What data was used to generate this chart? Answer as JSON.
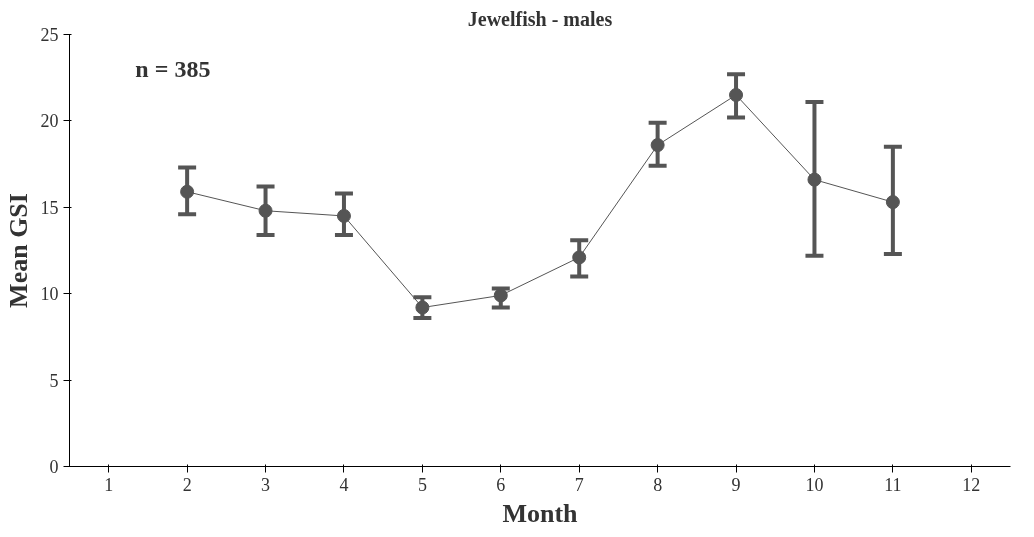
{
  "chart_data": {
    "type": "line",
    "title": "Jewelfish - males",
    "xlabel": "Month",
    "ylabel": "Mean GSI",
    "annotations": [
      "n = 385"
    ],
    "x": [
      2,
      3,
      4,
      5,
      6,
      7,
      8,
      9,
      10,
      11
    ],
    "series": [
      {
        "color": "#555555",
        "values": [
          15.9,
          14.8,
          14.5,
          9.2,
          9.9,
          12.1,
          18.6,
          21.5,
          16.6,
          15.3
        ],
        "errors": [
          [
            14.6,
            17.3
          ],
          [
            13.4,
            16.2
          ],
          [
            13.4,
            15.8
          ],
          [
            8.6,
            9.8
          ],
          [
            9.2,
            10.3
          ],
          [
            11.0,
            13.1
          ],
          [
            17.4,
            19.9
          ],
          [
            20.2,
            22.7
          ],
          [
            12.2,
            21.1
          ],
          [
            12.3,
            18.5
          ]
        ]
      }
    ],
    "xlim": [
      0.5,
      12.5
    ],
    "ylim": [
      0,
      25
    ],
    "xticks": [
      1,
      2,
      3,
      4,
      5,
      6,
      7,
      8,
      9,
      10,
      11,
      12
    ],
    "yticks": [
      0,
      5,
      10,
      15,
      20,
      25
    ],
    "grid": false,
    "marker": "circle",
    "line_style": "solid"
  }
}
